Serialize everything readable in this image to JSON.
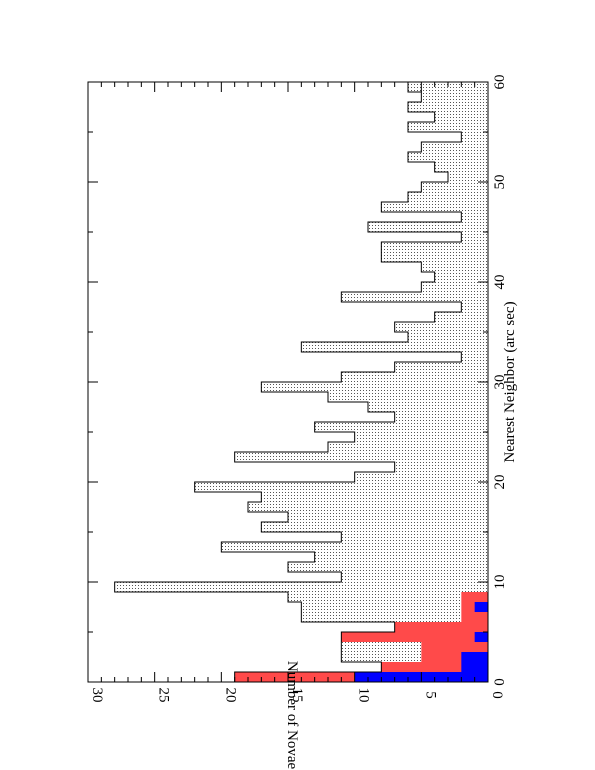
{
  "chart_data": {
    "type": "bar",
    "orientation": "rotated-90-ccw",
    "xlabel": "Nearest Neighbor (arc sec)",
    "ylabel": "Number of Novae",
    "xlim": [
      0,
      60
    ],
    "ylim": [
      0,
      30
    ],
    "x_ticks": [
      0,
      10,
      20,
      30,
      40,
      50,
      60
    ],
    "y_ticks": [
      0,
      5,
      10,
      15,
      20,
      25,
      30
    ],
    "bin_width": 1,
    "series": [
      {
        "fill": "stipple",
        "color": "#c8c8c8",
        "x": [
          0,
          1,
          2,
          3,
          4,
          5,
          6,
          7,
          8,
          9,
          10,
          11,
          12,
          13,
          14,
          15,
          16,
          17,
          18,
          19,
          20,
          21,
          22,
          23,
          24,
          25,
          26,
          27,
          28,
          29,
          30,
          31,
          32,
          33,
          34,
          35,
          36,
          37,
          38,
          39,
          40,
          41,
          42,
          43,
          44,
          45,
          46,
          47,
          48,
          49,
          50,
          51,
          52,
          53,
          54,
          55,
          56,
          57,
          58,
          59
        ],
        "values": [
          19,
          8,
          11,
          11,
          11,
          7,
          14,
          14,
          15,
          28,
          11,
          15,
          13,
          20,
          11,
          17,
          15,
          18,
          17,
          22,
          10,
          7,
          19,
          12,
          10,
          13,
          7,
          9,
          12,
          17,
          11,
          7,
          2,
          14,
          6,
          7,
          4,
          2,
          11,
          5,
          4,
          5,
          8,
          8,
          2,
          9,
          2,
          8,
          6,
          5,
          3,
          4,
          6,
          5,
          2,
          6,
          4,
          6,
          5,
          6
        ]
      },
      {
        "fill": "solid",
        "color": "#ff4a4a",
        "x": [
          0,
          1,
          2,
          3,
          4,
          5,
          6,
          7,
          8
        ],
        "values": [
          19,
          8,
          5,
          5,
          11,
          7,
          2,
          2,
          2
        ]
      },
      {
        "fill": "solid",
        "color": "#0000ff",
        "x": [
          0,
          1,
          2,
          3,
          4,
          5,
          6,
          7,
          8
        ],
        "values": [
          10,
          2,
          2,
          0,
          1,
          0,
          0,
          1,
          0
        ]
      }
    ]
  }
}
